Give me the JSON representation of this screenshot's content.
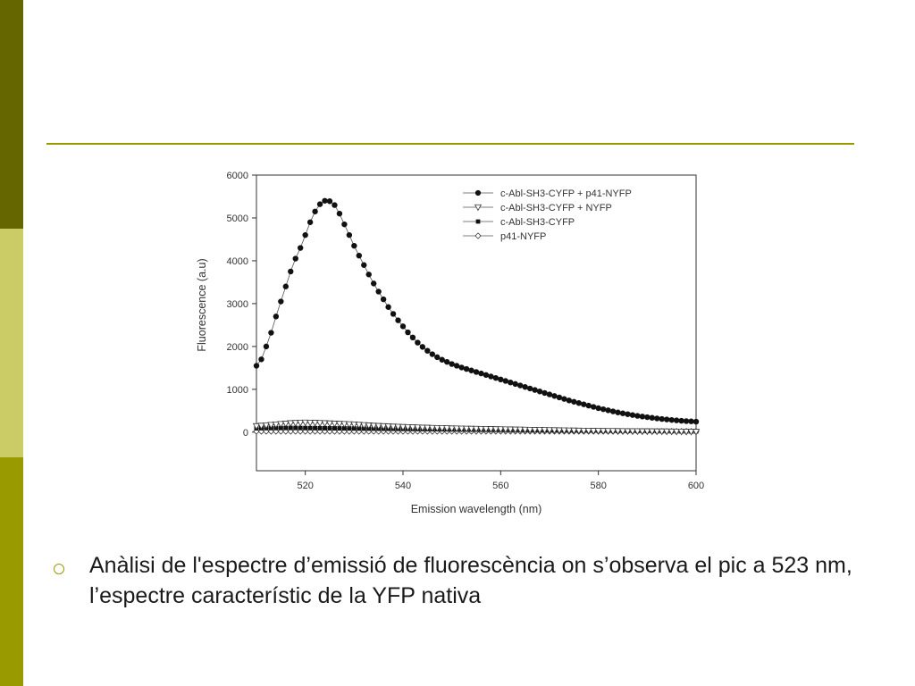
{
  "slide": {
    "bullet_text": "Anàlisi de l'espectre d’emissió de fluorescència on s’observa el pic a 523 nm, l’espectre característic de la YFP nativa",
    "accent_color": "#999900",
    "sidebar_colors": [
      "#666600",
      "#cccc66",
      "#999900"
    ]
  },
  "chart_data": {
    "type": "line",
    "title": "",
    "xlabel": "Emission wavelength (nm)",
    "ylabel": "Fluorescence (a.u)",
    "xlim": [
      510,
      600
    ],
    "ylim": [
      -900,
      6000
    ],
    "xticks": [
      520,
      540,
      560,
      580,
      600
    ],
    "yticks": [
      0,
      1000,
      2000,
      3000,
      4000,
      5000,
      6000
    ],
    "grid": false,
    "legend_position": "top-right",
    "series": [
      {
        "name": "c-Abl-SH3-CYFP + p41-NYFP",
        "marker": "filled-circle",
        "x": [
          510,
          511,
          512,
          513,
          514,
          515,
          516,
          517,
          518,
          519,
          520,
          521,
          522,
          523,
          524,
          525,
          526,
          527,
          528,
          529,
          530,
          531,
          532,
          533,
          534,
          535,
          536,
          537,
          538,
          539,
          540,
          541,
          542,
          543,
          544,
          545,
          546,
          547,
          548,
          549,
          550,
          551,
          552,
          553,
          554,
          555,
          556,
          557,
          558,
          559,
          560,
          561,
          562,
          563,
          564,
          565,
          566,
          567,
          568,
          569,
          570,
          571,
          572,
          573,
          574,
          575,
          576,
          577,
          578,
          579,
          580,
          581,
          582,
          583,
          584,
          585,
          586,
          587,
          588,
          589,
          590,
          591,
          592,
          593,
          594,
          595,
          596,
          597,
          598,
          599,
          600
        ],
        "values": [
          1550,
          1700,
          2000,
          2320,
          2700,
          3050,
          3400,
          3750,
          4050,
          4300,
          4600,
          4900,
          5150,
          5320,
          5400,
          5390,
          5300,
          5100,
          4850,
          4600,
          4350,
          4120,
          3900,
          3680,
          3470,
          3280,
          3100,
          2920,
          2760,
          2610,
          2470,
          2330,
          2210,
          2090,
          1990,
          1900,
          1820,
          1750,
          1690,
          1640,
          1590,
          1550,
          1510,
          1475,
          1440,
          1405,
          1370,
          1335,
          1300,
          1265,
          1230,
          1195,
          1160,
          1125,
          1090,
          1055,
          1020,
          985,
          950,
          915,
          880,
          845,
          810,
          775,
          740,
          710,
          680,
          650,
          620,
          590,
          560,
          535,
          510,
          485,
          460,
          440,
          420,
          400,
          380,
          365,
          350,
          335,
          320,
          308,
          296,
          285,
          275,
          266,
          258,
          252,
          245
        ]
      },
      {
        "name": "c-Abl-SH3-CYFP + NYFP",
        "marker": "open-triangle-down",
        "x": [
          510,
          511,
          512,
          513,
          514,
          515,
          516,
          517,
          518,
          519,
          520,
          521,
          522,
          523,
          524,
          525,
          526,
          527,
          528,
          529,
          530,
          531,
          532,
          533,
          534,
          535,
          536,
          537,
          538,
          539,
          540,
          541,
          542,
          543,
          544,
          545,
          546,
          547,
          548,
          549,
          550,
          551,
          552,
          553,
          554,
          555,
          556,
          557,
          558,
          559,
          560,
          561,
          562,
          563,
          564,
          565,
          566,
          567,
          568,
          569,
          570,
          571,
          572,
          573,
          574,
          575,
          576,
          577,
          578,
          579,
          580,
          581,
          582,
          583,
          584,
          585,
          586,
          587,
          588,
          589,
          590,
          591,
          592,
          593,
          594,
          595,
          596,
          597,
          598,
          599,
          600
        ],
        "values": [
          140,
          150,
          160,
          170,
          180,
          190,
          200,
          210,
          215,
          220,
          225,
          222,
          218,
          214,
          210,
          205,
          200,
          195,
          190,
          185,
          180,
          172,
          165,
          158,
          150,
          145,
          140,
          135,
          130,
          126,
          122,
          118,
          114,
          110,
          106,
          103,
          100,
          97,
          94,
          91,
          88,
          86,
          84,
          82,
          80,
          78,
          76,
          74,
          72,
          70,
          68,
          66,
          64,
          62,
          60,
          58,
          56,
          54,
          52,
          50,
          48,
          46,
          44,
          42,
          40,
          38,
          36,
          34,
          32,
          30,
          29,
          28,
          27,
          26,
          25,
          24,
          23,
          22,
          21,
          20,
          20,
          19,
          18,
          17,
          16,
          15,
          14,
          13,
          12,
          11,
          10
        ]
      },
      {
        "name": "c-Abl-SH3-CYFP",
        "marker": "filled-square",
        "x": [
          510,
          511,
          512,
          513,
          514,
          515,
          516,
          517,
          518,
          519,
          520,
          521,
          522,
          523,
          524,
          525,
          526,
          527,
          528,
          529,
          530,
          531,
          532,
          533,
          534,
          535,
          536,
          537,
          538,
          539,
          540,
          541,
          542,
          543,
          544,
          545,
          546,
          547,
          548,
          549,
          550,
          551,
          552,
          553,
          554,
          555,
          556,
          557,
          558,
          559,
          560,
          561,
          562,
          563,
          564,
          565,
          566,
          567,
          568,
          569,
          570,
          571,
          572,
          573,
          574,
          575,
          576,
          577,
          578,
          579,
          580,
          581,
          582,
          583,
          584,
          585,
          586,
          587,
          588,
          589,
          590,
          591,
          592,
          593,
          594,
          595,
          596,
          597,
          598,
          599,
          600
        ],
        "values": [
          90,
          92,
          94,
          95,
          96,
          97,
          98,
          98,
          98,
          97,
          96,
          95,
          94,
          93,
          92,
          91,
          90,
          89,
          88,
          87,
          86,
          85,
          84,
          83,
          82,
          81,
          80,
          79,
          78,
          77,
          76,
          75,
          74,
          73,
          72,
          71,
          70,
          69,
          68,
          67,
          66,
          65,
          64,
          63,
          62,
          61,
          60,
          59,
          58,
          57,
          56,
          55,
          54,
          53,
          52,
          51,
          50,
          49,
          48,
          47,
          46,
          45,
          44,
          43,
          42,
          41,
          40,
          39,
          38,
          37,
          36,
          35,
          34,
          33,
          32,
          31,
          30,
          29,
          28,
          27,
          26,
          25,
          24,
          23,
          22,
          21,
          20,
          19,
          18,
          17,
          16
        ]
      },
      {
        "name": "p41-NYFP",
        "marker": "open-diamond",
        "x": [
          510,
          511,
          512,
          513,
          514,
          515,
          516,
          517,
          518,
          519,
          520,
          521,
          522,
          523,
          524,
          525,
          526,
          527,
          528,
          529,
          530,
          531,
          532,
          533,
          534,
          535,
          536,
          537,
          538,
          539,
          540,
          541,
          542,
          543,
          544,
          545,
          546,
          547,
          548,
          549,
          550,
          551,
          552,
          553,
          554,
          555,
          556,
          557,
          558,
          559,
          560,
          561,
          562,
          563,
          564,
          565,
          566,
          567,
          568,
          569,
          570,
          571,
          572,
          573,
          574,
          575,
          576,
          577,
          578,
          579,
          580,
          581,
          582,
          583,
          584,
          585,
          586,
          587,
          588,
          589,
          590,
          591,
          592,
          593,
          594,
          595,
          596,
          597,
          598,
          599,
          600
        ],
        "values": [
          20,
          20,
          20,
          20,
          20,
          20,
          20,
          20,
          20,
          20,
          20,
          20,
          20,
          20,
          20,
          20,
          20,
          20,
          20,
          20,
          20,
          20,
          20,
          20,
          20,
          20,
          20,
          20,
          20,
          20,
          20,
          20,
          20,
          20,
          20,
          20,
          20,
          20,
          20,
          20,
          20,
          20,
          20,
          20,
          20,
          20,
          20,
          20,
          20,
          20,
          20,
          20,
          20,
          20,
          20,
          20,
          20,
          20,
          20,
          20,
          20,
          20,
          20,
          20,
          20,
          20,
          20,
          20,
          20,
          20,
          20,
          20,
          20,
          20,
          20,
          20,
          20,
          20,
          20,
          20,
          20,
          20,
          20,
          20,
          20,
          20,
          20,
          20,
          20,
          20,
          20
        ]
      }
    ]
  }
}
